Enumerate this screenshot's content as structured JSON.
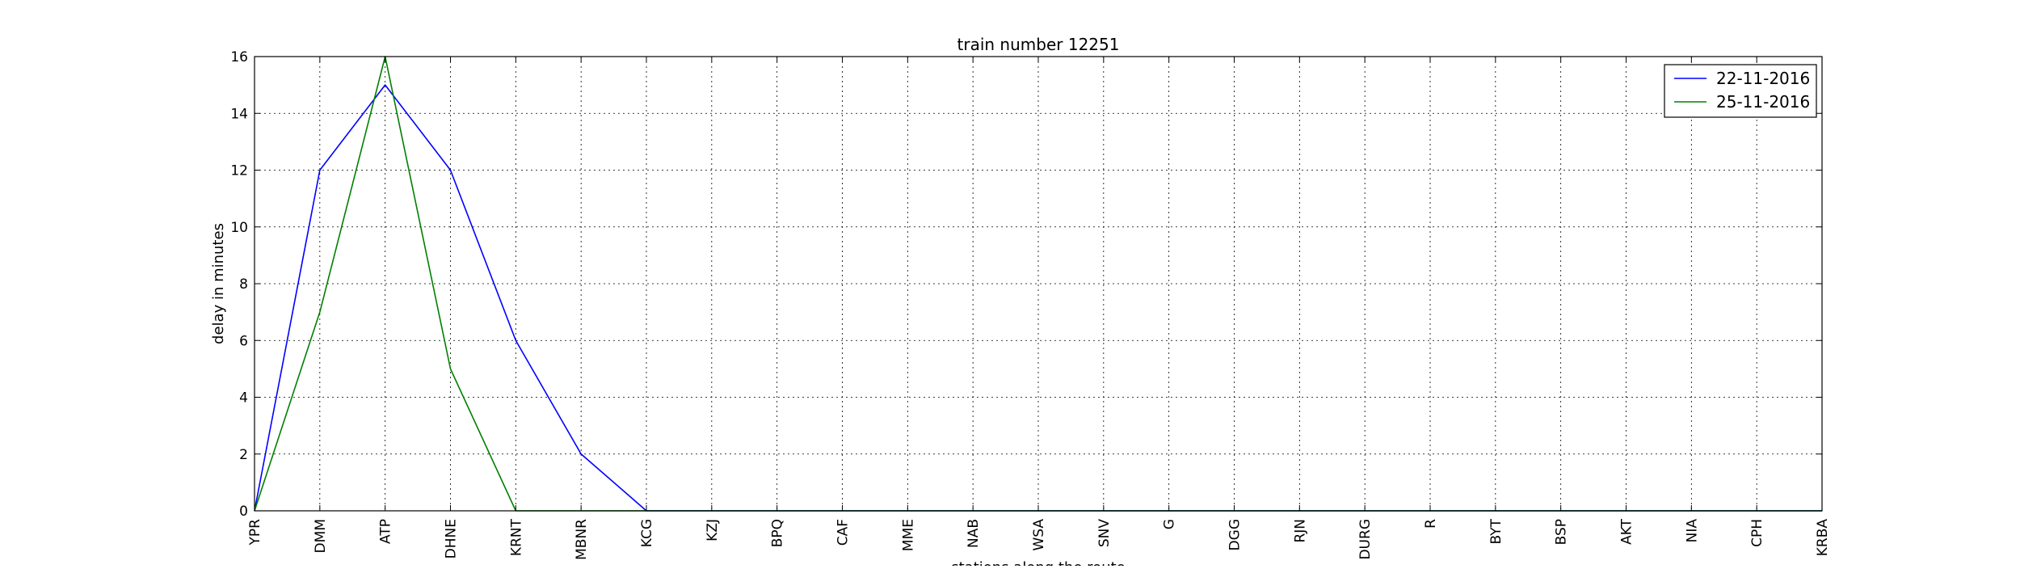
{
  "chart_data": {
    "type": "line",
    "title": "train number 12251",
    "xlabel": "stations along the route",
    "ylabel": "delay in minutes",
    "categories": [
      "YPR",
      "DMM",
      "ATP",
      "DHNE",
      "KRNT",
      "MBNR",
      "KCG",
      "KZJ",
      "BPQ",
      "CAF",
      "MME",
      "NAB",
      "WSA",
      "SNV",
      "G",
      "DGG",
      "RJN",
      "DURG",
      "R",
      "BYT",
      "BSP",
      "AKT",
      "NIA",
      "CPH",
      "KRBA"
    ],
    "ylim": [
      0,
      16
    ],
    "yticks": [
      0,
      2,
      4,
      6,
      8,
      10,
      12,
      14,
      16
    ],
    "grid": true,
    "legend_position": "top-right",
    "series": [
      {
        "name": "22-11-2016",
        "color": "#0000ff",
        "values": [
          0,
          12,
          15,
          12,
          6,
          2,
          0,
          0,
          0,
          0,
          0,
          0,
          0,
          0,
          0,
          0,
          0,
          0,
          0,
          0,
          0,
          0,
          0,
          0,
          0
        ]
      },
      {
        "name": "25-11-2016",
        "color": "#008000",
        "values": [
          0,
          7,
          16,
          5,
          0,
          0,
          0,
          0,
          0,
          0,
          0,
          0,
          0,
          0,
          0,
          0,
          0,
          0,
          0,
          0,
          0,
          0,
          0,
          0,
          0
        ]
      }
    ]
  }
}
